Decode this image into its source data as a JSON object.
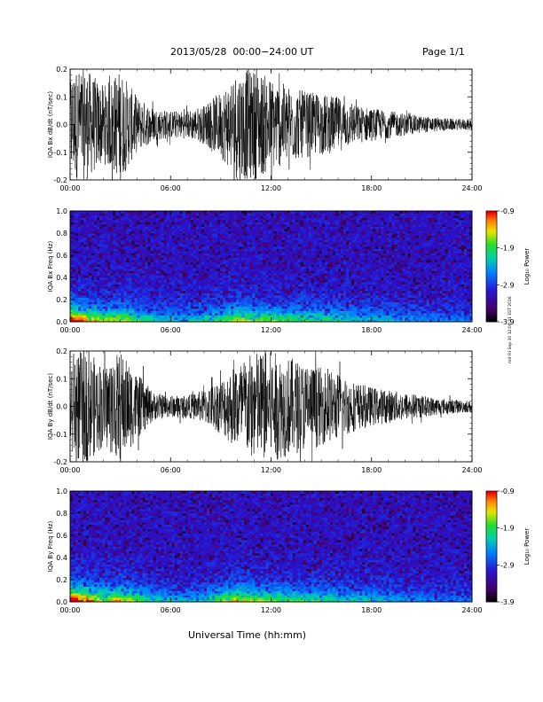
{
  "header": {
    "title": "2013/05/28  00:00−24:00 UT",
    "page": "Page 1/1"
  },
  "footer": {
    "xlabel": "Universal Time (hh:mm)",
    "stamp": "mit Fri Sep 30 12:00:31 EST 2016"
  },
  "chart_data": [
    {
      "type": "line",
      "title": "",
      "ylabel": "IQA Bx dB/dt (nT/sec)",
      "xlabel": "",
      "xlim": [
        "00:00",
        "24:00"
      ],
      "ylim": [
        -0.2,
        0.2
      ],
      "x_ticks": [
        "00:00",
        "06:00",
        "12:00",
        "18:00",
        "24:00"
      ],
      "y_ticks": [
        "-0.2",
        "-0.1",
        "0.0",
        "0.1",
        "0.2"
      ],
      "color": "#000000",
      "series": [
        {
          "x_hours": [
            0,
            1,
            2,
            3,
            4,
            5,
            6,
            7,
            8,
            9,
            10,
            11,
            12,
            13,
            14,
            15,
            16,
            17,
            18,
            19,
            20,
            21,
            22,
            23,
            24
          ],
          "amplitude": [
            0.2,
            0.2,
            0.14,
            0.2,
            0.1,
            0.06,
            0.05,
            0.05,
            0.07,
            0.12,
            0.2,
            0.2,
            0.17,
            0.14,
            0.12,
            0.11,
            0.1,
            0.07,
            0.06,
            0.05,
            0.04,
            0.03,
            0.025,
            0.02,
            0.02
          ]
        }
      ]
    },
    {
      "type": "heatmap",
      "title": "",
      "ylabel": "IQA Bx Freq (Hz)",
      "xlabel": "",
      "xlim": [
        "00:00",
        "24:00"
      ],
      "ylim": [
        0.0,
        1.0
      ],
      "x_ticks": [
        "00:00",
        "06:00",
        "12:00",
        "18:00",
        "24:00"
      ],
      "y_ticks": [
        "0.0",
        "0.2",
        "0.4",
        "0.6",
        "0.8",
        "1.0"
      ],
      "colorbar": {
        "label": "Log₁₀ Power",
        "min": "-3.9",
        "mid2": "-2.9",
        "mid1": "-1.9",
        "max": "-0.9"
      },
      "low_freq_power": [
        0.9,
        0.7,
        0.55,
        0.6,
        0.45,
        0.35,
        0.3,
        0.3,
        0.35,
        0.45,
        0.6,
        0.55,
        0.5,
        0.45,
        0.45,
        0.42,
        0.4,
        0.35,
        0.3,
        0.28,
        0.25,
        0.22,
        0.2,
        0.18,
        0.18
      ]
    },
    {
      "type": "line",
      "title": "",
      "ylabel": "IQA By dB/dt (nT/sec)",
      "xlabel": "",
      "xlim": [
        "00:00",
        "24:00"
      ],
      "ylim": [
        -0.2,
        0.2
      ],
      "x_ticks": [
        "00:00",
        "06:00",
        "12:00",
        "18:00",
        "24:00"
      ],
      "y_ticks": [
        "-0.2",
        "-0.1",
        "0.0",
        "0.1",
        "0.2"
      ],
      "color": "#000000",
      "series": [
        {
          "x_hours": [
            0,
            1,
            2,
            3,
            4,
            5,
            6,
            7,
            8,
            9,
            10,
            11,
            12,
            13,
            14,
            15,
            16,
            17,
            18,
            19,
            20,
            21,
            22,
            23,
            24
          ],
          "amplitude": [
            0.2,
            0.2,
            0.15,
            0.2,
            0.12,
            0.05,
            0.04,
            0.04,
            0.06,
            0.1,
            0.16,
            0.2,
            0.2,
            0.18,
            0.16,
            0.14,
            0.12,
            0.09,
            0.07,
            0.06,
            0.05,
            0.04,
            0.03,
            0.025,
            0.02
          ]
        }
      ]
    },
    {
      "type": "heatmap",
      "title": "",
      "ylabel": "IQA By Freq (Hz)",
      "xlabel": "",
      "xlim": [
        "00:00",
        "24:00"
      ],
      "ylim": [
        0.0,
        1.0
      ],
      "x_ticks": [
        "00:00",
        "06:00",
        "12:00",
        "18:00",
        "24:00"
      ],
      "y_ticks": [
        "0.0",
        "0.2",
        "0.4",
        "0.6",
        "0.8",
        "1.0"
      ],
      "colorbar": {
        "label": "Log₁₀ Power",
        "min": "-3.9",
        "mid2": "-2.9",
        "mid1": "-1.9",
        "max": "-0.9"
      },
      "low_freq_power": [
        0.95,
        0.75,
        0.6,
        0.65,
        0.5,
        0.35,
        0.3,
        0.3,
        0.35,
        0.5,
        0.65,
        0.55,
        0.5,
        0.45,
        0.45,
        0.42,
        0.38,
        0.33,
        0.3,
        0.27,
        0.24,
        0.2,
        0.18,
        0.17,
        0.17
      ]
    }
  ]
}
